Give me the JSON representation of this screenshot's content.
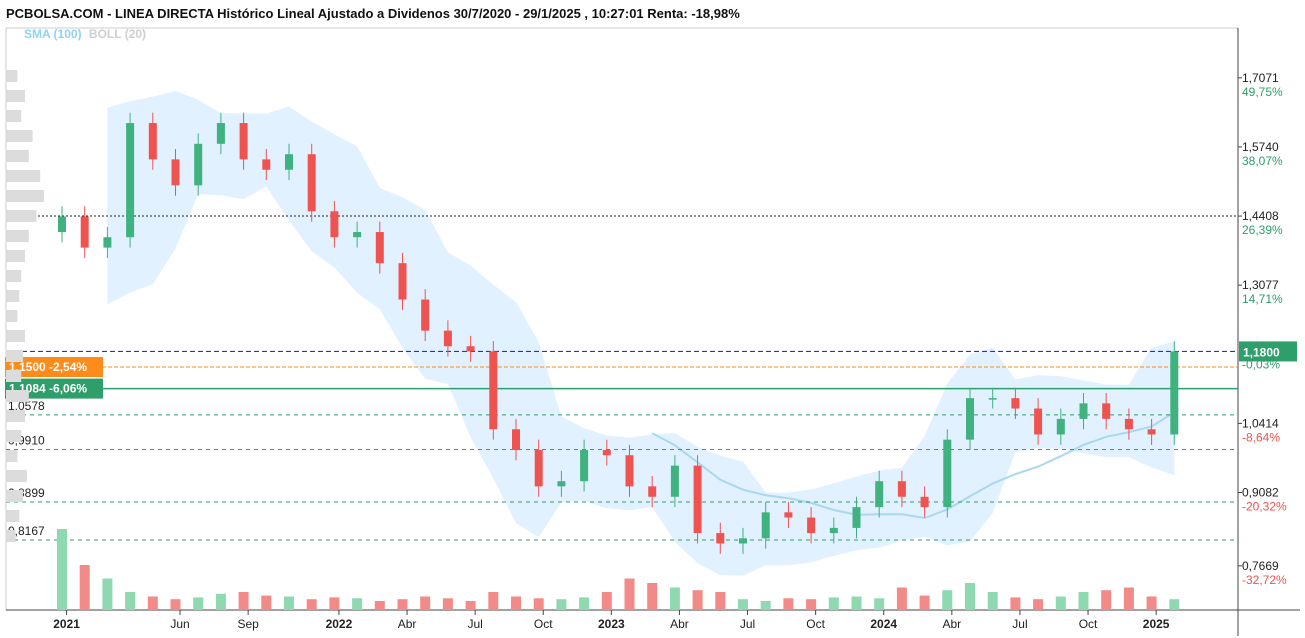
{
  "title": "PCBOLSA.COM - LINEA DIRECTA Histórico Lineal Ajustado a Dividenos 30/7/2020 - 29/1/2025 , 10:27:01 Renta: -18,98%",
  "legend": {
    "sma": "SMA (100)",
    "boll": "BOLL (20)"
  },
  "colors": {
    "up": "#3fb27f",
    "down": "#ef5350",
    "band": "#dcefff",
    "sma": "#a8d8f0",
    "orange": "#ff8c1a",
    "green": "#2e9e6a",
    "blue": "#2233cc"
  },
  "chart_data": {
    "type": "candlestick",
    "ylim": [
      0.73,
      1.78
    ],
    "x_ticks": [
      {
        "label": "2021",
        "t": 0.2,
        "bold": true
      },
      {
        "label": "Jun",
        "t": 5.2,
        "bold": false
      },
      {
        "label": "Sep",
        "t": 8.2,
        "bold": false
      },
      {
        "label": "2022",
        "t": 12.2,
        "bold": true
      },
      {
        "label": "Abr",
        "t": 15.2,
        "bold": false
      },
      {
        "label": "Jul",
        "t": 18.2,
        "bold": false
      },
      {
        "label": "Oct",
        "t": 21.2,
        "bold": false
      },
      {
        "label": "2023",
        "t": 24.2,
        "bold": true
      },
      {
        "label": "Abr",
        "t": 27.2,
        "bold": false
      },
      {
        "label": "Jul",
        "t": 30.2,
        "bold": false
      },
      {
        "label": "Oct",
        "t": 33.2,
        "bold": false
      },
      {
        "label": "2024",
        "t": 36.2,
        "bold": true
      },
      {
        "label": "Abr",
        "t": 39.2,
        "bold": false
      },
      {
        "label": "Jul",
        "t": 42.2,
        "bold": false
      },
      {
        "label": "Oct",
        "t": 45.2,
        "bold": false
      },
      {
        "label": "2025",
        "t": 48.2,
        "bold": true
      }
    ],
    "y_ticks": [
      {
        "value": 1.7071,
        "label": "1,7071",
        "pct": "49,75%",
        "pct_color": "#2e9e6a"
      },
      {
        "value": 1.574,
        "label": "1,5740",
        "pct": "38,07%",
        "pct_color": "#2e9e6a"
      },
      {
        "value": 1.4408,
        "label": "1,4408",
        "pct": "26,39%",
        "pct_color": "#2e9e6a"
      },
      {
        "value": 1.3077,
        "label": "1,3077",
        "pct": "14,71%",
        "pct_color": "#2e9e6a"
      },
      {
        "value": 1.0414,
        "label": "1,0414",
        "pct": "-8,64%",
        "pct_color": "#ef5350"
      },
      {
        "value": 0.9082,
        "label": "0,9082",
        "pct": "-20,32%",
        "pct_color": "#ef5350"
      },
      {
        "value": 0.7669,
        "label": "0,7669",
        "pct": "-32,72%",
        "pct_color": "#ef5350"
      }
    ],
    "left_levels": [
      {
        "value": 1.0578,
        "label": "1,0578"
      },
      {
        "value": 0.991,
        "label": "0,9910"
      },
      {
        "value": 0.8899,
        "label": "0,8899"
      },
      {
        "value": 0.8167,
        "label": "0,8167"
      }
    ],
    "markers": {
      "orange": {
        "value": 1.15,
        "label": "1,1500",
        "change": "-2,54%"
      },
      "green": {
        "value": 1.1084,
        "label": "1,1084",
        "change": "-6,06%"
      },
      "blue": {
        "value": 1.18,
        "label": "1,1800"
      },
      "hidden_pct": "-0,03%"
    },
    "reference_line": 1.4408,
    "closes": [
      1.44,
      1.38,
      1.4,
      1.62,
      1.55,
      1.5,
      1.58,
      1.62,
      1.55,
      1.53,
      1.56,
      1.45,
      1.4,
      1.41,
      1.35,
      1.28,
      1.22,
      1.19,
      1.18,
      1.03,
      0.99,
      0.92,
      0.93,
      0.99,
      0.98,
      0.92,
      0.9,
      0.96,
      0.83,
      0.81,
      0.82,
      0.87,
      0.86,
      0.83,
      0.84,
      0.88,
      0.93,
      0.9,
      0.88,
      1.01,
      1.09,
      1.09,
      1.07,
      1.02,
      1.05,
      1.08,
      1.05,
      1.03,
      1.02,
      1.18
    ],
    "volumes": [
      0.9,
      0.5,
      0.35,
      0.2,
      0.15,
      0.12,
      0.14,
      0.18,
      0.2,
      0.16,
      0.15,
      0.12,
      0.14,
      0.13,
      0.1,
      0.12,
      0.15,
      0.13,
      0.1,
      0.2,
      0.15,
      0.13,
      0.12,
      0.14,
      0.2,
      0.35,
      0.3,
      0.25,
      0.22,
      0.2,
      0.12,
      0.1,
      0.13,
      0.12,
      0.14,
      0.15,
      0.13,
      0.25,
      0.16,
      0.22,
      0.3,
      0.2,
      0.14,
      0.12,
      0.15,
      0.2,
      0.22,
      0.25,
      0.15,
      0.12
    ]
  }
}
